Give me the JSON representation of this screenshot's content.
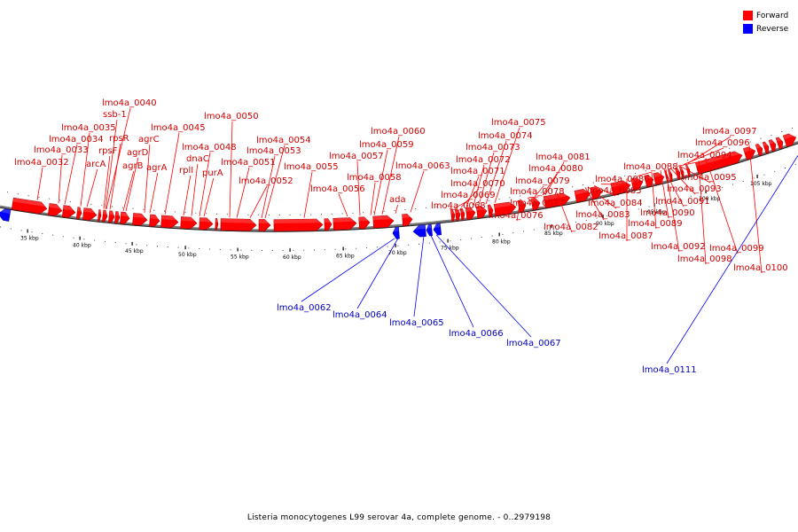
{
  "legend": {
    "forward": {
      "label": "Forward",
      "color": "#ff0000"
    },
    "reverse": {
      "label": "Reverse",
      "color": "#0000ff"
    }
  },
  "caption": "Listeria monocytogenes L99 serovar 4a, complete genome. - 0..2979198",
  "ticks": [
    "35 kbp",
    "40 kbp",
    "45 kbp",
    "50 kbp",
    "55 kbp",
    "60 kbp",
    "65 kbp",
    "70 kbp",
    "75 kbp",
    "80 kbp",
    "85 kbp",
    "90 kbp",
    "95 kbp",
    "100 kbp",
    "105 kbp"
  ],
  "forward_labels": [
    "lmo4a_0032",
    "lmo4a_0033",
    "lmo4a_0034",
    "lmo4a_0035",
    "arcA",
    "rpsF",
    "ssb-1",
    "lmo4a_0040",
    "rpsR",
    "agrB",
    "agrD",
    "agrC",
    "agrA",
    "lmo4a_0045",
    "rplI",
    "dnaC",
    "lmo4a_0048",
    "purA",
    "lmo4a_0050",
    "lmo4a_0051",
    "lmo4a_0052",
    "lmo4a_0053",
    "lmo4a_0054",
    "lmo4a_0055",
    "lmo4a_0056",
    "lmo4a_0057",
    "lmo4a_0058",
    "lmo4a_0059",
    "lmo4a_0060",
    "ada",
    "lmo4a_0063",
    "lmo4a_0068",
    "lmo4a_0069",
    "lmo4a_0070",
    "lmo4a_0071",
    "lmo4a_0072",
    "lmo4a_0073",
    "lmo4a_0074",
    "lmo4a_0075",
    "lmo4a_0076",
    "lmo4a_0077",
    "lmo4a_0078",
    "lmo4a_0079",
    "lmo4a_0080",
    "lmo4a_0081",
    "lmo4a_0082",
    "lmo4a_0083",
    "lmo4a_0084",
    "lmo4a_0085",
    "lmo4a_0086",
    "lmo4a_0087",
    "lmo4a_0088",
    "lmo4a_0089",
    "lmo4a_0090",
    "lmo4a_0091",
    "lmo4a_0092",
    "lmo4a_0093",
    "lmo4a_0094",
    "lmo4a_0095",
    "lmo4a_0096",
    "lmo4a_0097",
    "lmo4a_0098",
    "lmo4a_0099",
    "lmo4a_0100"
  ],
  "reverse_labels": [
    "lmo4a_0062",
    "lmo4a_0064",
    "lmo4a_0065",
    "lmo4a_0066",
    "lmo4a_0067",
    "lmo4a_0111"
  ]
}
